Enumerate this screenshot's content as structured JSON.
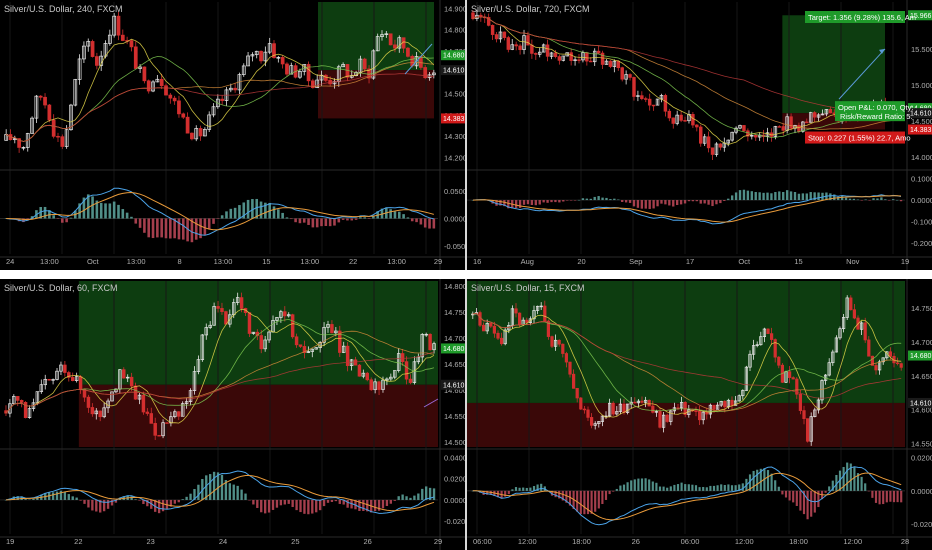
{
  "colors": {
    "up": "#e8e8e8",
    "down": "#d32f2f",
    "profit_zone": "#0d3d10",
    "loss_zone": "#3a0808",
    "green_tag": "#1f9a2a",
    "red_tag": "#d11a1a",
    "arrow": "#5a9ad8",
    "macd_line": "#4ba3e8",
    "signal_line": "#e89a3a",
    "hist_pos": "#5fa8a0",
    "hist_neg": "#c24a5a"
  },
  "chart_data": [
    {
      "type": "candlestick",
      "title": "Silver/U.S. Dollar, 240, FXCM",
      "price_ticks": [
        "14.900",
        "14.800",
        "14.700",
        "14.600",
        "14.500",
        "14.400",
        "14.300",
        "14.200"
      ],
      "price_ylim": [
        14.15,
        14.93
      ],
      "price_tags": [
        {
          "label": "14.680",
          "value": 14.68,
          "color": "green"
        },
        {
          "label": "14.610",
          "value": 14.61,
          "color": "dark"
        },
        {
          "label": "14.383",
          "value": 14.383,
          "color": "red"
        }
      ],
      "macd_ticks": [
        "0.0500",
        "0.0000",
        "-0.0500"
      ],
      "macd_ylim": [
        -0.065,
        0.085
      ],
      "x_labels": [
        "24",
        "13:00",
        "Oct",
        "13:00",
        "8",
        "13:00",
        "15",
        "13:00",
        "22",
        "13:00",
        "29"
      ],
      "candle_count": 100,
      "price_path": [
        14.28,
        14.3,
        14.24,
        14.38,
        14.5,
        14.44,
        14.3,
        14.26,
        14.48,
        14.66,
        14.74,
        14.64,
        14.74,
        14.85,
        14.78,
        14.72,
        14.62,
        14.52,
        14.6,
        14.56,
        14.48,
        14.42,
        14.35,
        14.3,
        14.32,
        14.4,
        14.46,
        14.5,
        14.56,
        14.62,
        14.7,
        14.68,
        14.74,
        14.66,
        14.62,
        14.6,
        14.62,
        14.55,
        14.58,
        14.56,
        14.58,
        14.62,
        14.58,
        14.64,
        14.58,
        14.76,
        14.8,
        14.72,
        14.74,
        14.68,
        14.64,
        14.6,
        14.62
      ],
      "entry": 14.61,
      "target": 14.93,
      "stop": 14.383,
      "trade_start": 0.73
    },
    {
      "type": "candlestick",
      "title": "Silver/U.S. Dollar, 720, FXCM",
      "price_ticks": [
        "15.966",
        "15.500",
        "15.000",
        "14.500",
        "14.000"
      ],
      "price_ylim": [
        13.85,
        16.15
      ],
      "price_tags": [
        {
          "label": "15.966",
          "value": 15.966,
          "color": "green"
        },
        {
          "label": "14.680",
          "value": 14.68,
          "color": "green"
        },
        {
          "label": "14.610",
          "value": 14.61,
          "color": "dark"
        },
        {
          "label": "14.383",
          "value": 14.383,
          "color": "red"
        }
      ],
      "macd_ticks": [
        "0.1000",
        "0.0000",
        "-0.1000",
        "-0.2000"
      ],
      "macd_ylim": [
        -0.25,
        0.13
      ],
      "x_labels": [
        "16",
        "Aug",
        "20",
        "Sep",
        "17",
        "Oct",
        "15",
        "Nov",
        "19"
      ],
      "candle_count": 110,
      "price_path": [
        16.0,
        15.85,
        15.7,
        15.55,
        15.6,
        15.45,
        15.5,
        15.4,
        15.45,
        15.35,
        15.4,
        15.3,
        15.1,
        14.9,
        14.7,
        14.8,
        14.5,
        14.6,
        14.3,
        14.1,
        14.25,
        14.4,
        14.3,
        14.2,
        14.35,
        14.5,
        14.45,
        14.6,
        14.7,
        14.55,
        14.65,
        14.6,
        14.72,
        14.65,
        14.68
      ],
      "entry": 14.61,
      "target": 15.966,
      "stop": 14.383,
      "trade_start": 0.72,
      "order_labels": {
        "target": "Target: 1.356 (9.28%) 135.6, Am",
        "open_pl": "Open P&L: 0.070, Qty:",
        "risk_reward": "Risk/Reward Ratio: 5.",
        "stop": "Stop: 0.227 (1.55%) 22.7, Amo"
      }
    },
    {
      "type": "candlestick",
      "title": "Silver/U.S. Dollar, 60, FXCM",
      "price_ticks": [
        "14.800",
        "14.750",
        "14.700",
        "14.650",
        "14.600",
        "14.550",
        "14.500"
      ],
      "price_ylim": [
        14.49,
        14.81
      ],
      "price_tags": [
        {
          "label": "14.680",
          "value": 14.68,
          "color": "green"
        },
        {
          "label": "14.610",
          "value": 14.61,
          "color": "dark"
        }
      ],
      "macd_ticks": [
        "0.0400",
        "0.0200",
        "0.0000",
        "-0.0200"
      ],
      "macd_ylim": [
        -0.032,
        0.046
      ],
      "x_labels": [
        "19",
        "22",
        "23",
        "24",
        "25",
        "26",
        "29"
      ],
      "candle_count": 110,
      "price_path": [
        14.56,
        14.58,
        14.55,
        14.6,
        14.62,
        14.65,
        14.62,
        14.58,
        14.55,
        14.6,
        14.63,
        14.6,
        14.56,
        14.52,
        14.54,
        14.55,
        14.6,
        14.7,
        14.76,
        14.74,
        14.78,
        14.72,
        14.68,
        14.74,
        14.76,
        14.7,
        14.66,
        14.7,
        14.72,
        14.68,
        14.64,
        14.62,
        14.6,
        14.62,
        14.66,
        14.62,
        14.7,
        14.68
      ],
      "entry": 14.61,
      "target": 14.81,
      "stop": 14.49,
      "trade_start": 0.18
    },
    {
      "type": "candlestick",
      "title": "Silver/U.S. Dollar, 15, FXCM",
      "price_ticks": [
        "14.750",
        "14.700",
        "14.650",
        "14.600",
        "14.550"
      ],
      "price_ylim": [
        14.545,
        14.79
      ],
      "price_tags": [
        {
          "label": "14.680",
          "value": 14.68,
          "color": "green"
        },
        {
          "label": "14.610",
          "value": 14.61,
          "color": "dark"
        }
      ],
      "macd_ticks": [
        "0.0200",
        "0.0000",
        "-0.0200"
      ],
      "macd_ylim": [
        -0.026,
        0.024
      ],
      "x_labels": [
        "06:00",
        "12:00",
        "18:00",
        "26",
        "06:00",
        "12:00",
        "18:00",
        "12:00",
        "28"
      ],
      "candle_count": 120,
      "price_path": [
        14.74,
        14.72,
        14.7,
        14.74,
        14.72,
        14.75,
        14.7,
        14.68,
        14.6,
        14.58,
        14.6,
        14.6,
        14.62,
        14.61,
        14.58,
        14.6,
        14.6,
        14.59,
        14.6,
        14.61,
        14.62,
        14.7,
        14.72,
        14.65,
        14.64,
        14.56,
        14.63,
        14.7,
        14.76,
        14.72,
        14.66,
        14.68,
        14.67
      ],
      "entry": 14.61,
      "target": 14.79,
      "stop": 14.545,
      "trade_start": 0.0
    }
  ]
}
